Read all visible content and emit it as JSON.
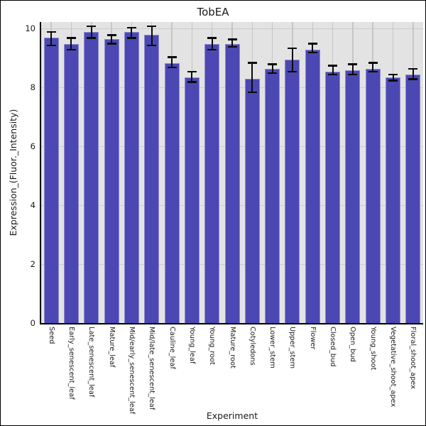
{
  "chart_data": {
    "type": "bar",
    "title": "TobEA",
    "xlabel": "Experiment",
    "ylabel": "Expression_(Fluor._Intensity)",
    "ylim": [
      0,
      10.24
    ],
    "yticks": [
      0,
      2,
      4,
      6,
      8,
      10
    ],
    "grid": true,
    "legend": false,
    "bar_color": "#4b48b3",
    "bar_edge_color": "#8d8bd0",
    "error_color": "#0a0a0a",
    "panel_bg": "#e3e3e3",
    "categories": [
      "Seed",
      "Early_senescent_leaf",
      "Late_senescent_leaf",
      "Mature_leaf",
      "Mid/early_senescent_leaf",
      "Mid/late_senescent_leaf",
      "Cauline_leaf",
      "Young_leaf",
      "Young_root",
      "Mature_root",
      "Cotyledons",
      "Lower_stem",
      "Upper_stem",
      "Flower",
      "Closed_bud",
      "Open_bud",
      "Young_shoot",
      "Vegetative_shoot_apex",
      "Floral_shoot_apex"
    ],
    "values": [
      9.7,
      9.5,
      9.9,
      9.65,
      9.9,
      9.8,
      8.85,
      8.35,
      9.5,
      9.5,
      8.3,
      8.65,
      8.95,
      9.3,
      8.55,
      8.6,
      8.65,
      8.35,
      8.45
    ],
    "error_low": [
      9.45,
      9.3,
      9.7,
      9.5,
      9.7,
      9.45,
      8.7,
      8.2,
      9.3,
      9.4,
      7.85,
      8.5,
      8.55,
      9.2,
      8.45,
      8.45,
      8.55,
      8.25,
      8.3
    ],
    "error_high": [
      9.9,
      9.7,
      10.1,
      9.8,
      10.05,
      10.1,
      9.05,
      8.55,
      9.7,
      9.65,
      8.85,
      8.8,
      9.35,
      9.5,
      8.75,
      8.8,
      8.85,
      8.45,
      8.65
    ]
  }
}
